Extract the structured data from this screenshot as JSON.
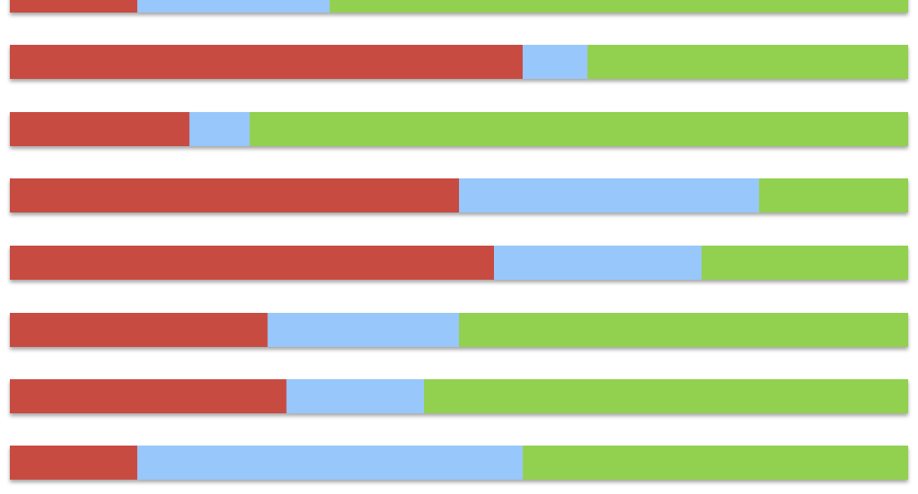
{
  "chart_data": {
    "type": "bar",
    "orientation": "horizontal",
    "stacked": "percent",
    "title": "",
    "xlabel": "",
    "ylabel": "",
    "xlim": [
      0,
      100
    ],
    "grid": false,
    "legend": "none",
    "categories": [
      "",
      "",
      "",
      "",
      "",
      "",
      "",
      ""
    ],
    "series": [
      {
        "color": "#c84b42",
        "values": [
          14.2,
          57.1,
          20.0,
          50.0,
          53.9,
          28.7,
          30.8,
          14.2
        ]
      },
      {
        "color": "#97c7fb",
        "values": [
          21.4,
          7.2,
          6.7,
          33.4,
          23.1,
          21.3,
          15.3,
          42.9
        ]
      },
      {
        "color": "#92d050",
        "values": [
          64.4,
          35.7,
          73.3,
          16.6,
          23.0,
          50.0,
          53.9,
          42.9
        ]
      }
    ]
  }
}
